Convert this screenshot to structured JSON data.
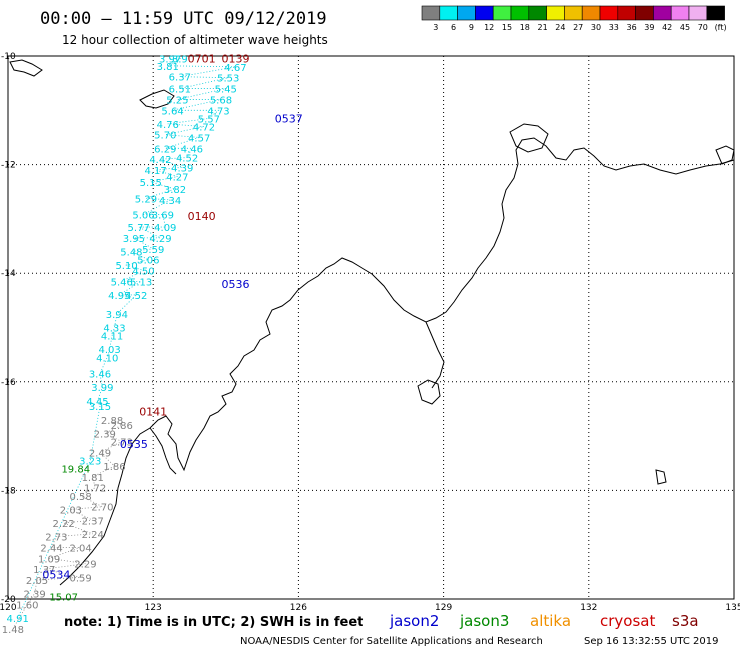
{
  "header": {
    "title": "00:00 – 11:59 UTC 09/12/2019",
    "subtitle": "12 hour collection of altimeter wave heights"
  },
  "color_scale": {
    "colors": [
      "#7f7f7f",
      "#00f0f0",
      "#00a8f0",
      "#0000f0",
      "#40f040",
      "#00c000",
      "#008800",
      "#f0f000",
      "#f0c000",
      "#f08800",
      "#f00000",
      "#c00000",
      "#800000",
      "#a000a0",
      "#f080f0",
      "#f0b0f0",
      "#000000"
    ],
    "labels": [
      "3",
      "6",
      "9",
      "12",
      "15",
      "18",
      "21",
      "24",
      "27",
      "30",
      "33",
      "36",
      "39",
      "42",
      "45",
      "70",
      "(ft)"
    ]
  },
  "map": {
    "lat_ticks": [
      "-10",
      "-12",
      "-14",
      "-16",
      "-18",
      "-20"
    ],
    "lon_ticks": [
      "120",
      "123",
      "126",
      "129",
      "132",
      "135"
    ]
  },
  "passes": [
    {
      "label": "0701",
      "color": "#990000",
      "lon": 124.0,
      "lat": -10.05
    },
    {
      "label": "0139",
      "color": "#990000",
      "lon": 124.7,
      "lat": -10.05
    },
    {
      "label": "0537",
      "color": "#0000cc",
      "lon": 125.8,
      "lat": -11.15
    },
    {
      "label": "0140",
      "color": "#990000",
      "lon": 124.0,
      "lat": -12.95
    },
    {
      "label": "0536",
      "color": "#0000cc",
      "lon": 124.7,
      "lat": -14.2
    },
    {
      "label": "0141",
      "color": "#990000",
      "lon": 123.0,
      "lat": -16.55
    },
    {
      "label": "0535",
      "color": "#0000cc",
      "lon": 122.6,
      "lat": -17.15
    },
    {
      "label": "0534",
      "color": "#0000cc",
      "lon": 121.0,
      "lat": -19.55
    }
  ],
  "observations": [
    {
      "v": "3.97",
      "c": "#00d0e0",
      "lon": 123.35,
      "lat": -10.05
    },
    {
      "v": "3.9",
      "c": "#00d0e0",
      "lon": 123.55,
      "lat": -10.05
    },
    {
      "v": "3.81",
      "c": "#00d0e0",
      "lon": 123.3,
      "lat": -10.18
    },
    {
      "v": "4.67",
      "c": "#00d0e0",
      "lon": 124.7,
      "lat": -10.2
    },
    {
      "v": "6.37",
      "c": "#00d0e0",
      "lon": 123.55,
      "lat": -10.38
    },
    {
      "v": "5.53",
      "c": "#00d0e0",
      "lon": 124.55,
      "lat": -10.4
    },
    {
      "v": "6.51",
      "c": "#00d0e0",
      "lon": 123.55,
      "lat": -10.6
    },
    {
      "v": "5.45",
      "c": "#00d0e0",
      "lon": 124.5,
      "lat": -10.6
    },
    {
      "v": "5.25",
      "c": "#00d0e0",
      "lon": 123.5,
      "lat": -10.8
    },
    {
      "v": "5.68",
      "c": "#00d0e0",
      "lon": 124.4,
      "lat": -10.8
    },
    {
      "v": "5.64",
      "c": "#00d0e0",
      "lon": 123.4,
      "lat": -11.0
    },
    {
      "v": "4.73",
      "c": "#00d0e0",
      "lon": 124.35,
      "lat": -11.0
    },
    {
      "v": "5.57",
      "c": "#00d0e0",
      "lon": 124.15,
      "lat": -11.15
    },
    {
      "v": "4.76",
      "c": "#00d0e0",
      "lon": 123.3,
      "lat": -11.25
    },
    {
      "v": "4.72",
      "c": "#00d0e0",
      "lon": 124.05,
      "lat": -11.3
    },
    {
      "v": "5.70",
      "c": "#00d0e0",
      "lon": 123.25,
      "lat": -11.45
    },
    {
      "v": "4.57",
      "c": "#00d0e0",
      "lon": 123.95,
      "lat": -11.5
    },
    {
      "v": "6.29",
      "c": "#00d0e0",
      "lon": 123.25,
      "lat": -11.7
    },
    {
      "v": "4.46",
      "c": "#00d0e0",
      "lon": 123.8,
      "lat": -11.7
    },
    {
      "v": "4.42",
      "c": "#00d0e0",
      "lon": 123.15,
      "lat": -11.9
    },
    {
      "v": "4.52",
      "c": "#00d0e0",
      "lon": 123.7,
      "lat": -11.87
    },
    {
      "v": "4.39",
      "c": "#00d0e0",
      "lon": 123.6,
      "lat": -12.05
    },
    {
      "v": "4.17",
      "c": "#00d0e0",
      "lon": 123.05,
      "lat": -12.1
    },
    {
      "v": "4.27",
      "c": "#00d0e0",
      "lon": 123.5,
      "lat": -12.22
    },
    {
      "v": "5.15",
      "c": "#00d0e0",
      "lon": 122.95,
      "lat": -12.32
    },
    {
      "v": "3.82",
      "c": "#00d0e0",
      "lon": 123.45,
      "lat": -12.45
    },
    {
      "v": "5.29",
      "c": "#00d0e0",
      "lon": 122.85,
      "lat": -12.62
    },
    {
      "v": "4.34",
      "c": "#00d0e0",
      "lon": 123.35,
      "lat": -12.65
    },
    {
      "v": "5.06",
      "c": "#00d0e0",
      "lon": 122.8,
      "lat": -12.92
    },
    {
      "v": "3.69",
      "c": "#00d0e0",
      "lon": 123.2,
      "lat": -12.92
    },
    {
      "v": "4.09",
      "c": "#00d0e0",
      "lon": 123.25,
      "lat": -13.15
    },
    {
      "v": "5.77",
      "c": "#00d0e0",
      "lon": 122.7,
      "lat": -13.15
    },
    {
      "v": "4.29",
      "c": "#00d0e0",
      "lon": 123.15,
      "lat": -13.35
    },
    {
      "v": "3.95",
      "c": "#00d0e0",
      "lon": 122.6,
      "lat": -13.35
    },
    {
      "v": "5.59",
      "c": "#00d0e0",
      "lon": 123.0,
      "lat": -13.55
    },
    {
      "v": "5.48",
      "c": "#00d0e0",
      "lon": 122.55,
      "lat": -13.6
    },
    {
      "v": "5.06",
      "c": "#00d0e0",
      "lon": 122.9,
      "lat": -13.75
    },
    {
      "v": "5.10",
      "c": "#00d0e0",
      "lon": 122.45,
      "lat": -13.85
    },
    {
      "v": "4.50",
      "c": "#00d0e0",
      "lon": 122.8,
      "lat": -13.95
    },
    {
      "v": "5.46",
      "c": "#00d0e0",
      "lon": 122.35,
      "lat": -14.15
    },
    {
      "v": "5.13",
      "c": "#00d0e0",
      "lon": 122.75,
      "lat": -14.15
    },
    {
      "v": "4.95",
      "c": "#00d0e0",
      "lon": 122.3,
      "lat": -14.4
    },
    {
      "v": "4.52",
      "c": "#00d0e0",
      "lon": 122.65,
      "lat": -14.4
    },
    {
      "v": "3.94",
      "c": "#00d0e0",
      "lon": 122.25,
      "lat": -14.75
    },
    {
      "v": "4.33",
      "c": "#00d0e0",
      "lon": 122.2,
      "lat": -15.0
    },
    {
      "v": "4.11",
      "c": "#00d0e0",
      "lon": 122.15,
      "lat": -15.15
    },
    {
      "v": "4.03",
      "c": "#00d0e0",
      "lon": 122.1,
      "lat": -15.4
    },
    {
      "v": "4.10",
      "c": "#00d0e0",
      "lon": 122.05,
      "lat": -15.55
    },
    {
      "v": "3.46",
      "c": "#00d0e0",
      "lon": 121.9,
      "lat": -15.85
    },
    {
      "v": "3.99",
      "c": "#00d0e0",
      "lon": 121.95,
      "lat": -16.1
    },
    {
      "v": "4.45",
      "c": "#00d0e0",
      "lon": 121.85,
      "lat": -16.35
    },
    {
      "v": "3.15",
      "c": "#00d0e0",
      "lon": 121.9,
      "lat": -16.45
    },
    {
      "v": "2.88",
      "c": "#7f7f7f",
      "lon": 122.15,
      "lat": -16.7
    },
    {
      "v": "2.86",
      "c": "#7f7f7f",
      "lon": 122.35,
      "lat": -16.8
    },
    {
      "v": "2.39",
      "c": "#7f7f7f",
      "lon": 122.0,
      "lat": -16.95
    },
    {
      "v": "2.73",
      "c": "#7f7f7f",
      "lon": 122.35,
      "lat": -17.1
    },
    {
      "v": "2.49",
      "c": "#7f7f7f",
      "lon": 121.9,
      "lat": -17.3
    },
    {
      "v": "3.23",
      "c": "#00d0e0",
      "lon": 121.7,
      "lat": -17.45
    },
    {
      "v": "1.86",
      "c": "#7f7f7f",
      "lon": 122.2,
      "lat": -17.55
    },
    {
      "v": "19.84",
      "c": "#008800",
      "lon": 121.4,
      "lat": -17.6
    },
    {
      "v": "1.81",
      "c": "#7f7f7f",
      "lon": 121.75,
      "lat": -17.75
    },
    {
      "v": "1.72",
      "c": "#7f7f7f",
      "lon": 121.8,
      "lat": -17.95
    },
    {
      "v": "0.58",
      "c": "#7f7f7f",
      "lon": 121.5,
      "lat": -18.1
    },
    {
      "v": "2.70",
      "c": "#7f7f7f",
      "lon": 121.95,
      "lat": -18.3
    },
    {
      "v": "2.03",
      "c": "#7f7f7f",
      "lon": 121.3,
      "lat": -18.35
    },
    {
      "v": "2.37",
      "c": "#7f7f7f",
      "lon": 121.75,
      "lat": -18.55
    },
    {
      "v": "2.22",
      "c": "#7f7f7f",
      "lon": 121.15,
      "lat": -18.6
    },
    {
      "v": "2.73",
      "c": "#7f7f7f",
      "lon": 121.0,
      "lat": -18.85
    },
    {
      "v": "2.24",
      "c": "#7f7f7f",
      "lon": 121.75,
      "lat": -18.8
    },
    {
      "v": "2.44",
      "c": "#7f7f7f",
      "lon": 120.9,
      "lat": -19.05
    },
    {
      "v": "2.04",
      "c": "#7f7f7f",
      "lon": 121.5,
      "lat": -19.05
    },
    {
      "v": "1.09",
      "c": "#7f7f7f",
      "lon": 120.85,
      "lat": -19.25
    },
    {
      "v": "2.29",
      "c": "#7f7f7f",
      "lon": 121.6,
      "lat": -19.35
    },
    {
      "v": "1.37",
      "c": "#7f7f7f",
      "lon": 120.75,
      "lat": -19.45
    },
    {
      "v": "2.05",
      "c": "#7f7f7f",
      "lon": 120.6,
      "lat": -19.65
    },
    {
      "v": "0.59",
      "c": "#7f7f7f",
      "lon": 121.5,
      "lat": -19.6
    },
    {
      "v": "2.39",
      "c": "#7f7f7f",
      "lon": 120.55,
      "lat": -19.9
    },
    {
      "v": "15.07",
      "c": "#008800",
      "lon": 121.15,
      "lat": -19.95
    },
    {
      "v": "1.60",
      "c": "#7f7f7f",
      "lon": 120.4,
      "lat": -20.1
    },
    {
      "v": "4.91",
      "c": "#00d0e0",
      "lon": 120.2,
      "lat": -20.35
    },
    {
      "v": "1.48",
      "c": "#7f7f7f",
      "lon": 120.1,
      "lat": -20.55
    }
  ],
  "note": "note: 1) Time is in UTC; 2) SWH is in feet",
  "satellites": [
    {
      "name": "jason2",
      "color": "#0000cc"
    },
    {
      "name": "jason3",
      "color": "#008800"
    },
    {
      "name": "altika",
      "color": "#f09000"
    },
    {
      "name": "cryosat",
      "color": "#cc0000"
    },
    {
      "name": "s3a",
      "color": "#800000"
    }
  ],
  "footer": {
    "credit": "NOAA/NESDIS Center for Satellite Applications and Research",
    "timestamp": "Sep 16 13:32:55 UTC 2019"
  }
}
